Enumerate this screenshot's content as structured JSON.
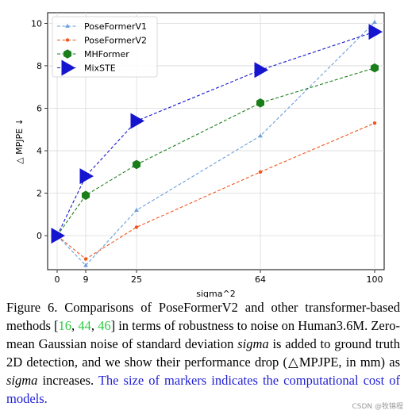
{
  "chart_data": {
    "type": "line",
    "xlabel": "sigma^2",
    "ylabel": "△ MPJPE ↓",
    "x_ticks": [
      0,
      9,
      25,
      64,
      100
    ],
    "y_ticks": [
      0,
      2,
      4,
      6,
      8,
      10
    ],
    "xlim": [
      -3,
      103
    ],
    "ylim": [
      -1.6,
      10.5
    ],
    "grid": true,
    "legend": "top-left",
    "series": [
      {
        "name": "PoseFormerV1",
        "color": "#6a9fdc",
        "marker": "triangle",
        "x": [
          0,
          9,
          25,
          64,
          100
        ],
        "y": [
          0,
          -1.4,
          1.2,
          4.7,
          10.05
        ]
      },
      {
        "name": "PoseFormerV2",
        "color": "#f0561c",
        "marker": "circle",
        "x": [
          0,
          9,
          25,
          64,
          100
        ],
        "y": [
          0,
          -1.1,
          0.4,
          3.0,
          5.3
        ]
      },
      {
        "name": "MHFormer",
        "color": "#1a7f1a",
        "marker": "hexagon",
        "x": [
          0,
          9,
          25,
          64,
          100
        ],
        "y": [
          0,
          1.9,
          3.35,
          6.25,
          7.9
        ]
      },
      {
        "name": "MixSTE",
        "color": "#1515d0",
        "marker": "triangle-right",
        "x": [
          0,
          9,
          25,
          64,
          100
        ],
        "y": [
          0,
          2.8,
          5.4,
          7.8,
          9.6
        ]
      }
    ]
  },
  "caption": {
    "lead": "Figure 6.  Comparisons of PoseFormerV2 and other transformer-based methods [",
    "ref1": "16",
    "sep1": ", ",
    "ref2": "44",
    "sep2": ", ",
    "ref3": "46",
    "middle": "] in terms of robustness to noise on Human3.6M. Zero-mean Gaussian noise of standard deviation ",
    "math1": "sigma",
    "middle2": " is added to ground truth 2D detection, and we show their performance drop (△MPJPE, in mm) as ",
    "math2": "sigma",
    "middle3": " increases. ",
    "blue": "The size of markers indicates the computational cost of models."
  },
  "watermark": "CSDN @牧锦程"
}
